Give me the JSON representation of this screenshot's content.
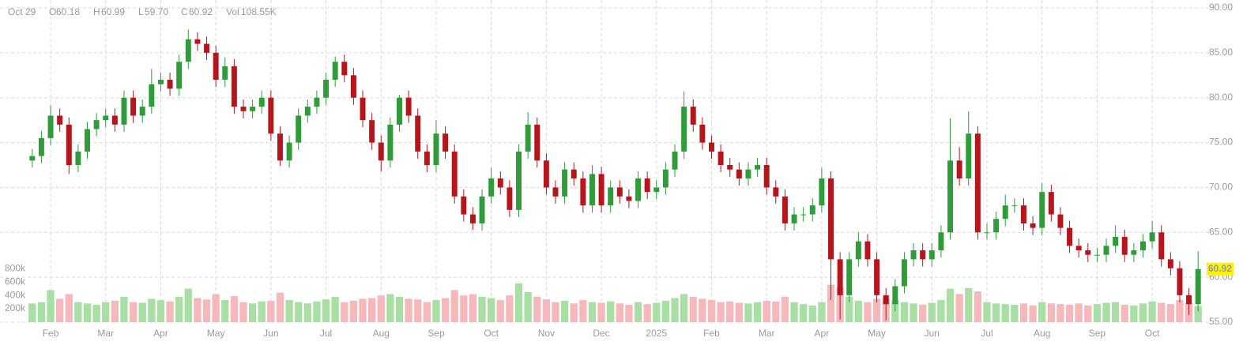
{
  "header": {
    "date": "Oct 29",
    "fields": [
      {
        "label": "O",
        "value": "60.18"
      },
      {
        "label": "H",
        "value": "60.99"
      },
      {
        "label": "L",
        "value": "59.70"
      },
      {
        "label": "C",
        "value": "60.92"
      },
      {
        "label": "Vol",
        "value": "108.55K"
      }
    ]
  },
  "chart_data": {
    "type": "candlestick",
    "categories": [
      null,
      null,
      "Feb",
      null,
      null,
      null,
      null,
      null,
      "Mar",
      null,
      null,
      null,
      null,
      null,
      "Apr",
      null,
      null,
      null,
      null,
      null,
      "May",
      null,
      null,
      null,
      null,
      null,
      "Jun",
      null,
      null,
      null,
      null,
      null,
      "Jul",
      null,
      null,
      null,
      null,
      null,
      "Aug",
      null,
      null,
      null,
      null,
      null,
      "Sep",
      null,
      null,
      null,
      null,
      null,
      "Oct",
      null,
      null,
      null,
      null,
      null,
      "Nov",
      null,
      null,
      null,
      null,
      null,
      "Dec",
      null,
      null,
      null,
      null,
      null,
      "2025",
      null,
      null,
      null,
      null,
      null,
      "Feb",
      null,
      null,
      null,
      null,
      null,
      "Mar",
      null,
      null,
      null,
      null,
      null,
      "Apr",
      null,
      null,
      null,
      null,
      null,
      "May",
      null,
      null,
      null,
      null,
      null,
      "Jun",
      null,
      null,
      null,
      null,
      null,
      "Jul",
      null,
      null,
      null,
      null,
      null,
      "Aug",
      null,
      null,
      null,
      null,
      null,
      "Sep",
      null,
      null,
      null,
      null,
      null,
      "Oct",
      null,
      null,
      null,
      null,
      null
    ],
    "open": [
      73,
      73.5,
      75.5,
      78,
      77,
      72.5,
      74,
      76.5,
      77.5,
      78,
      77,
      80,
      78,
      79,
      81.5,
      82,
      81,
      84,
      86.5,
      86,
      85,
      82,
      83.5,
      79,
      78.5,
      79,
      80,
      76,
      73,
      75,
      78,
      79,
      80,
      82,
      84,
      82.5,
      80,
      77.5,
      75,
      73,
      77,
      80,
      78,
      74,
      72.5,
      76,
      74,
      69,
      67,
      66,
      69,
      71,
      70,
      67.5,
      74,
      77,
      73,
      70,
      69,
      72,
      71,
      68,
      71.5,
      68,
      70,
      69,
      68.5,
      71,
      69.5,
      70,
      72,
      74,
      79,
      77,
      75,
      74,
      72.5,
      72,
      71,
      72,
      72.5,
      70,
      69,
      66,
      67,
      67,
      68,
      71,
      62,
      58,
      62,
      64,
      62,
      58,
      57,
      59,
      62,
      63,
      62,
      63,
      65,
      73,
      71,
      76,
      65,
      65,
      66.5,
      68,
      68,
      66,
      65.5,
      69.5,
      67,
      65.5,
      63.5,
      63,
      62.5,
      62.5,
      63.5,
      64.5,
      62.5,
      63,
      64,
      65,
      62,
      61,
      58,
      57
    ],
    "high": [
      74.3,
      76.3,
      79.2,
      78.8,
      77.8,
      74.8,
      77.3,
      78.3,
      78.8,
      78.8,
      80.8,
      80.8,
      79.8,
      83.2,
      82.8,
      82.8,
      84.8,
      87.6,
      87.3,
      86.8,
      85.8,
      84.5,
      84.3,
      79.8,
      79.8,
      80.8,
      80.8,
      76.8,
      75.8,
      78.8,
      79.8,
      80.8,
      82.8,
      84.6,
      84.8,
      83.3,
      80.8,
      78.3,
      75.8,
      77.8,
      80.3,
      80.8,
      78.8,
      74.8,
      77.5,
      76.8,
      74.8,
      69.8,
      67.8,
      69.8,
      72.2,
      71.8,
      70.8,
      74.8,
      78.4,
      77.8,
      73.8,
      70.8,
      72.8,
      72.8,
      71.8,
      72.5,
      72.3,
      70.8,
      70.8,
      69.8,
      71.8,
      71.8,
      70.8,
      72.8,
      74.8,
      80.7,
      79.8,
      77.8,
      75.8,
      74.8,
      73.3,
      72.8,
      72.8,
      73.3,
      73.3,
      70.8,
      69.8,
      67.8,
      67.8,
      68.8,
      72.2,
      71.8,
      62.8,
      62.8,
      65,
      64.8,
      62.8,
      58.8,
      59.8,
      62.8,
      63.8,
      63.8,
      63.8,
      65.8,
      77.7,
      74.5,
      78.5,
      76.8,
      66,
      67.3,
      69.2,
      68.8,
      68.8,
      66.8,
      70.5,
      70.3,
      67.8,
      66.3,
      64.3,
      63.8,
      63.3,
      64.3,
      65.8,
      65.3,
      63.8,
      64.8,
      66.3,
      65.8,
      62.8,
      61.8,
      58.8,
      62.9
    ],
    "low": [
      72.2,
      72.7,
      74.7,
      76.2,
      71.5,
      71.7,
      73.2,
      75.7,
      76.7,
      76.2,
      76.2,
      77.2,
      77.2,
      78.2,
      80.7,
      80.2,
      80.2,
      83.2,
      85.2,
      84.2,
      81.2,
      81.2,
      78.2,
      77.7,
      77.7,
      78.2,
      75.2,
      72.4,
      72.2,
      74.2,
      77.2,
      78.2,
      79.2,
      81.2,
      81.7,
      79.2,
      76.7,
      74.2,
      71.8,
      72.2,
      76.2,
      77.2,
      73.2,
      71.7,
      71.7,
      73.2,
      68.2,
      66.2,
      65.3,
      65.2,
      68.2,
      69.2,
      66.7,
      66.7,
      73.2,
      72.2,
      69.2,
      68.2,
      68.2,
      70.2,
      67.2,
      67.2,
      67.2,
      67.2,
      68.2,
      67.7,
      67.7,
      68.7,
      68.7,
      69.2,
      71.2,
      73.2,
      76.2,
      74.2,
      73.2,
      71.7,
      71.2,
      70.2,
      70.2,
      71.2,
      69.2,
      68.2,
      65.2,
      65.2,
      66.2,
      66.2,
      67.2,
      57.5,
      55.3,
      57.2,
      61.2,
      61.2,
      57.2,
      55.2,
      56.2,
      58.2,
      61.2,
      61.2,
      61.2,
      62.2,
      64.2,
      70.2,
      70.2,
      64.2,
      64.2,
      64.2,
      65.7,
      67.2,
      65.2,
      64.7,
      64.7,
      66.2,
      64.7,
      62.7,
      62.2,
      61.7,
      61.7,
      61.7,
      62.7,
      61.7,
      61.7,
      62.2,
      63.2,
      61.2,
      60.2,
      57.2,
      55.8,
      56.2
    ],
    "close": [
      73.5,
      75.5,
      78,
      77,
      72.5,
      74,
      76.5,
      77.5,
      78,
      77,
      80,
      78,
      79,
      81.5,
      82,
      81,
      84,
      86.5,
      86,
      85,
      82,
      83.5,
      79,
      78.5,
      79,
      80,
      76,
      73,
      75,
      78,
      79,
      80,
      82,
      84,
      82.5,
      80,
      77.5,
      75,
      73,
      77,
      80,
      78,
      74,
      72.5,
      76,
      74,
      69,
      67,
      66,
      69,
      71,
      70,
      67.5,
      74,
      77,
      73,
      70,
      69,
      72,
      71,
      68,
      71.5,
      68,
      70,
      69,
      68.5,
      71,
      69.5,
      70,
      72,
      74,
      79,
      77,
      75,
      74,
      72.5,
      72,
      71,
      72,
      72.5,
      70,
      69,
      66,
      67,
      67,
      68,
      71,
      62,
      58,
      62,
      64,
      62,
      58,
      57,
      59,
      62,
      63,
      62,
      63,
      65,
      73,
      71,
      76,
      65,
      65,
      66.5,
      68,
      68,
      66,
      65.5,
      69.5,
      67,
      65.5,
      63.5,
      63,
      62.5,
      62.5,
      63.5,
      64.5,
      62.5,
      63,
      64,
      65,
      62,
      61,
      58,
      57,
      60.92
    ],
    "volume": [
      280000,
      300000,
      480000,
      350000,
      420000,
      300000,
      280000,
      260000,
      300000,
      320000,
      380000,
      300000,
      290000,
      350000,
      330000,
      310000,
      380000,
      500000,
      360000,
      340000,
      420000,
      330000,
      390000,
      300000,
      280000,
      310000,
      320000,
      440000,
      330000,
      300000,
      280000,
      310000,
      340000,
      380000,
      300000,
      320000,
      350000,
      360000,
      400000,
      420000,
      380000,
      350000,
      340000,
      300000,
      330000,
      360000,
      480000,
      400000,
      420000,
      380000,
      360000,
      330000,
      400000,
      580000,
      450000,
      380000,
      340000,
      300000,
      320000,
      280000,
      330000,
      300000,
      290000,
      310000,
      280000,
      260000,
      300000,
      270000,
      290000,
      320000,
      360000,
      420000,
      380000,
      350000,
      330000,
      300000,
      310000,
      290000,
      280000,
      300000,
      320000,
      310000,
      380000,
      300000,
      270000,
      250000,
      300000,
      560000,
      520000,
      380000,
      320000,
      300000,
      350000,
      360000,
      330000,
      300000,
      280000,
      260000,
      290000,
      330000,
      500000,
      420000,
      510000,
      460000,
      300000,
      280000,
      270000,
      260000,
      280000,
      250000,
      300000,
      280000,
      270000,
      260000,
      280000,
      250000,
      270000,
      290000,
      300000,
      260000,
      250000,
      280000,
      310000,
      290000,
      270000,
      330000,
      290000,
      240000
    ],
    "up_color": "#2f9c3a",
    "down_color": "#b5151b",
    "volume_up_color": "#a9dea5",
    "volume_down_color": "#f7b8bb",
    "ylim": [
      55,
      90
    ],
    "yticks": [
      {
        "value": 55,
        "label": "55.00"
      },
      {
        "value": 60,
        "label": "60.00"
      },
      {
        "value": 65,
        "label": "65.00"
      },
      {
        "value": 70,
        "label": "70.00"
      },
      {
        "value": 75,
        "label": "75.00"
      },
      {
        "value": 80,
        "label": "80.00"
      },
      {
        "value": 85,
        "label": "85.00"
      },
      {
        "value": 90,
        "label": "90.00"
      }
    ],
    "y2lim": [
      0,
      4700000
    ],
    "y2ticks": [
      {
        "value": 200000,
        "label": "200k"
      },
      {
        "value": 400000,
        "label": "400k"
      },
      {
        "value": 600000,
        "label": "600k"
      },
      {
        "value": 800000,
        "label": "800k"
      }
    ],
    "grid": true,
    "last_price": {
      "value": 60.92,
      "label": "60.92"
    }
  }
}
